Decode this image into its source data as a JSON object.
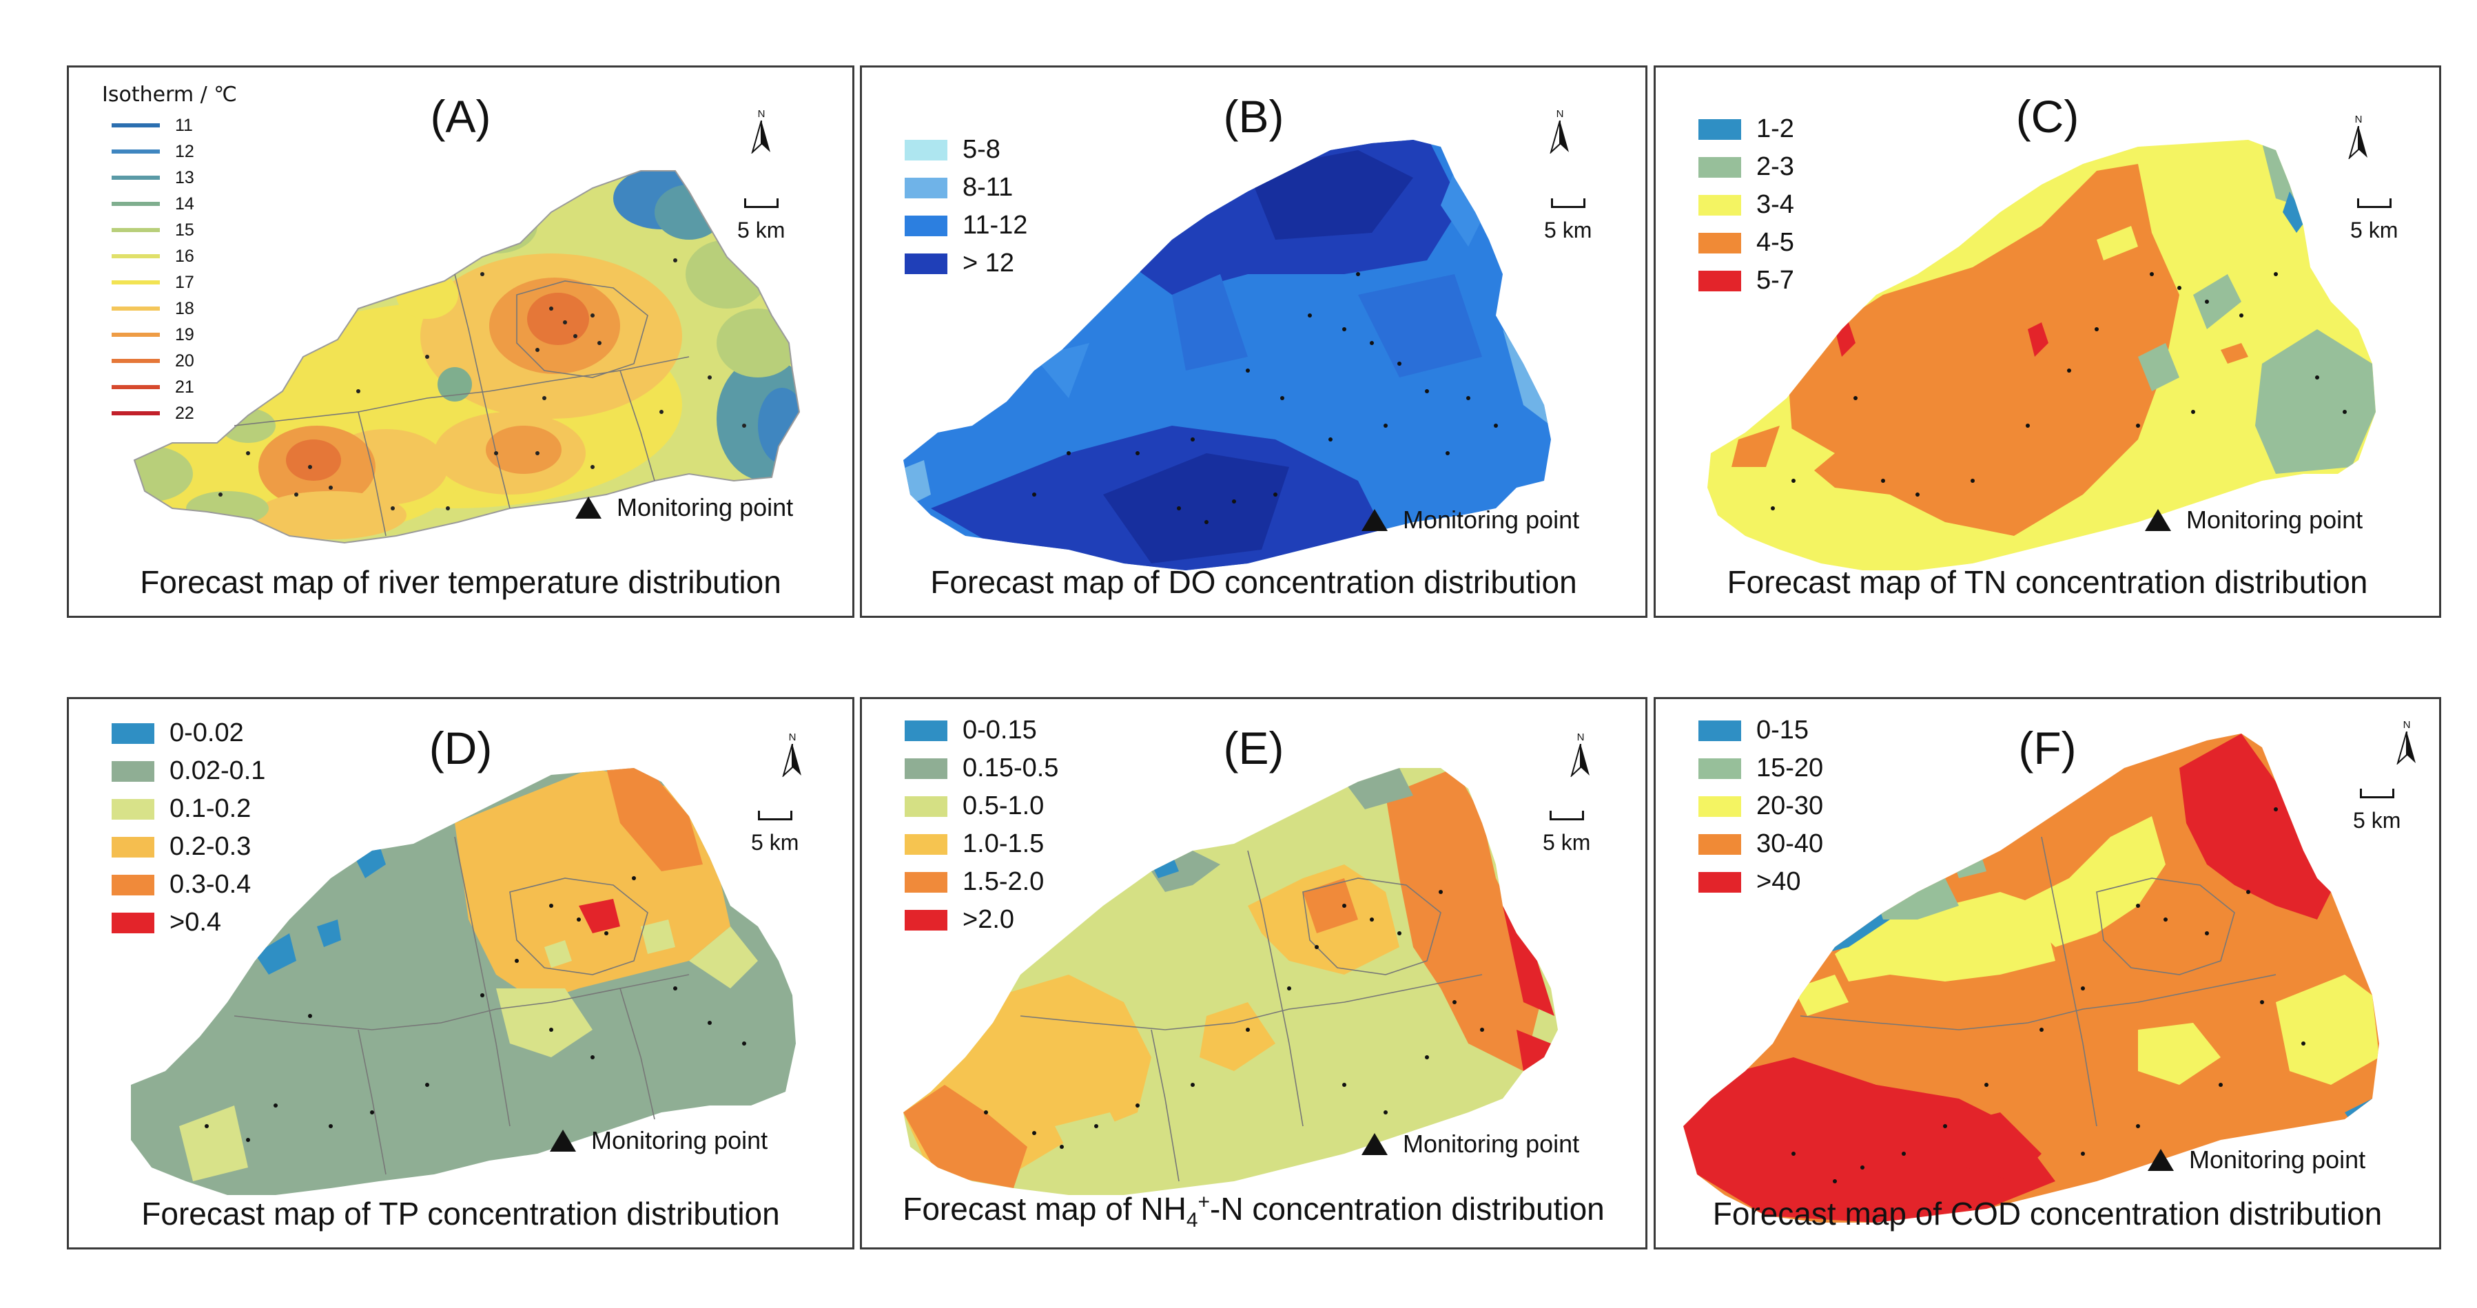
{
  "colors": {
    "temperature_isotherms": [
      "#2b6fb0",
      "#3f86c0",
      "#5a9aa6",
      "#7fae8e",
      "#b8cf7a",
      "#e0e06a",
      "#f2e353",
      "#f4c65a",
      "#ee9c45",
      "#e57738",
      "#d6492d",
      "#c2202a"
    ],
    "do_classes": [
      "#aee6f0",
      "#6fb3e8",
      "#2c7fe0",
      "#1f3fb8"
    ],
    "tn_classes": [
      "#2f8fc4",
      "#97bf9a",
      "#f4f462",
      "#f08a36",
      "#e3242a"
    ],
    "tp_classes": [
      "#2f8fc4",
      "#8fae94",
      "#d8e289",
      "#f5be4f",
      "#f08a3a",
      "#e3242a"
    ],
    "nh4_classes": [
      "#2f8fc4",
      "#8fae94",
      "#d5e084",
      "#f6c450",
      "#f08a3a",
      "#e3242a"
    ],
    "cod_classes": [
      "#2f8fc4",
      "#97bf9a",
      "#f4f462",
      "#f08a36",
      "#e3242a"
    ]
  },
  "icons": {
    "north_arrow": "north-arrow-icon",
    "monitoring_point": "triangle-marker-icon"
  },
  "panels": [
    {
      "letter": "(A)",
      "legend_title": "Isotherm / ℃",
      "legend": [
        {
          "label": "11"
        },
        {
          "label": "12"
        },
        {
          "label": "13"
        },
        {
          "label": "14"
        },
        {
          "label": "15"
        },
        {
          "label": "16"
        },
        {
          "label": "17"
        },
        {
          "label": "18"
        },
        {
          "label": "19"
        },
        {
          "label": "20"
        },
        {
          "label": "21"
        },
        {
          "label": "22"
        }
      ],
      "north": "N",
      "scale": "5 km",
      "monitoring": "Monitoring point",
      "caption": "Forecast map of river temperature distribution"
    },
    {
      "letter": "(B)",
      "legend": [
        {
          "label": "5-8"
        },
        {
          "label": "8-11"
        },
        {
          "label": "11-12"
        },
        {
          "label": "> 12"
        }
      ],
      "north": "N",
      "scale": "5 km",
      "monitoring": "Monitoring point",
      "caption": "Forecast map of DO concentration distribution"
    },
    {
      "letter": "(C)",
      "legend": [
        {
          "label": "1-2"
        },
        {
          "label": "2-3"
        },
        {
          "label": "3-4"
        },
        {
          "label": "4-5"
        },
        {
          "label": "5-7"
        }
      ],
      "north": "N",
      "scale": "5 km",
      "monitoring": "Monitoring point",
      "caption": "Forecast map of TN concentration distribution"
    },
    {
      "letter": "(D)",
      "legend": [
        {
          "label": "0-0.02"
        },
        {
          "label": "0.02-0.1"
        },
        {
          "label": "0.1-0.2"
        },
        {
          "label": "0.2-0.3"
        },
        {
          "label": "0.3-0.4"
        },
        {
          "label": ">0.4"
        }
      ],
      "north": "N",
      "scale": "5 km",
      "monitoring": "Monitoring point",
      "caption": "Forecast map of TP concentration distribution"
    },
    {
      "letter": "(E)",
      "legend": [
        {
          "label": "0-0.15"
        },
        {
          "label": "0.15-0.5"
        },
        {
          "label": "0.5-1.0"
        },
        {
          "label": "1.0-1.5"
        },
        {
          "label": "1.5-2.0"
        },
        {
          "label": ">2.0"
        }
      ],
      "north": "N",
      "scale": "5 km",
      "monitoring": "Monitoring point",
      "caption_pre": "Forecast map of NH",
      "caption_sub": "4",
      "caption_sup": "+",
      "caption_post": "-N concentration distribution"
    },
    {
      "letter": "(F)",
      "legend": [
        {
          "label": "0-15"
        },
        {
          "label": "15-20"
        },
        {
          "label": "20-30"
        },
        {
          "label": "30-40"
        },
        {
          "label": ">40"
        }
      ],
      "north": "N",
      "scale": "5 km",
      "monitoring": "Monitoring point",
      "caption": "Forecast map of COD concentration distribution"
    }
  ]
}
